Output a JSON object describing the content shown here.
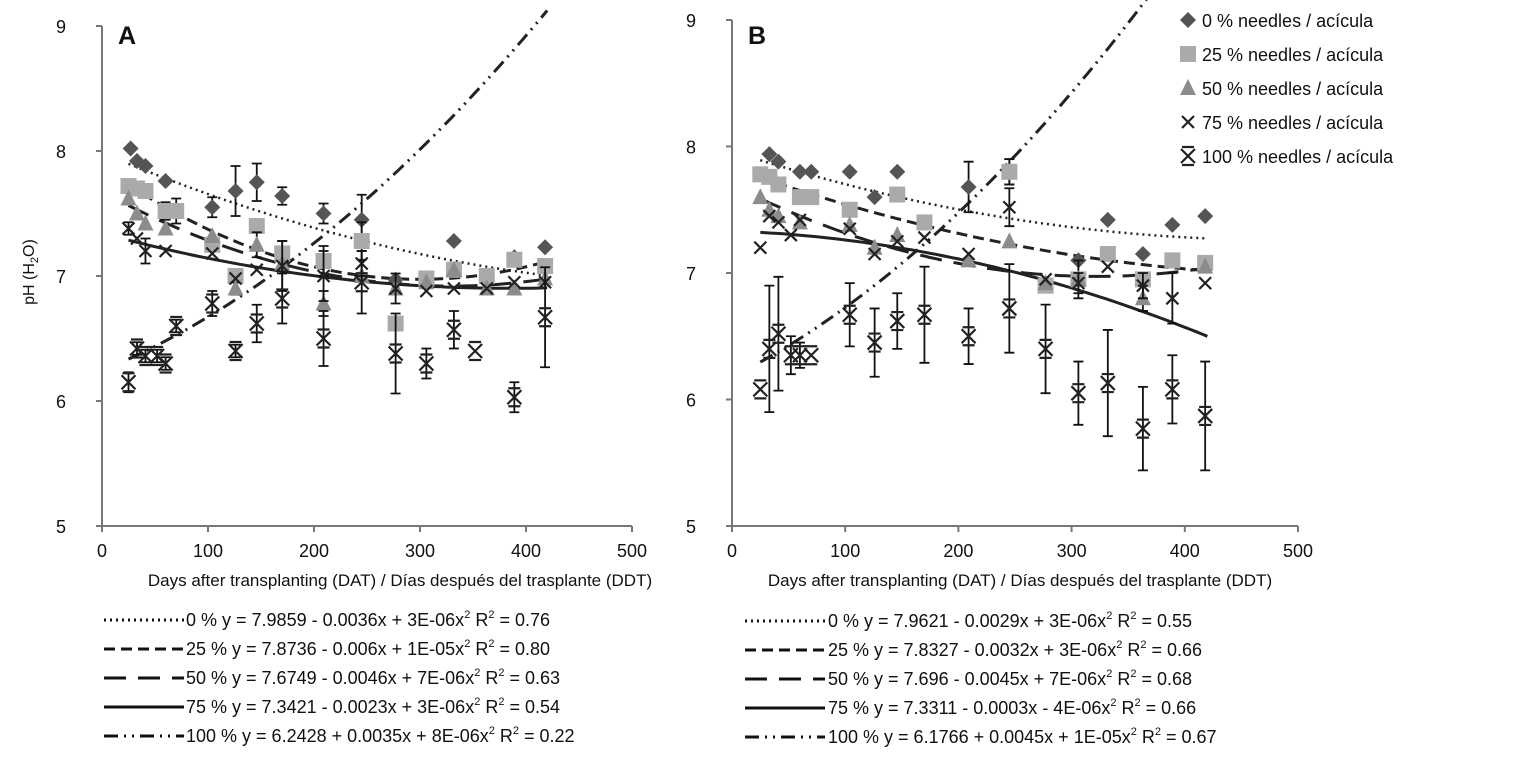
{
  "figure": {
    "ylabel_main": "pH (H",
    "ylabel_sub": "2",
    "ylabel_end": "O)"
  },
  "legend": {
    "items": [
      {
        "marker": "diamond",
        "label": "0 % needles / acícula"
      },
      {
        "marker": "square",
        "label": "25 % needles / acícula"
      },
      {
        "marker": "triangle",
        "label": "50 % needles / acícula"
      },
      {
        "marker": "x",
        "label": "75 % needles / acícula"
      },
      {
        "marker": "xbar",
        "label": "100 % needles / acícula"
      }
    ]
  },
  "colors": {
    "s0": "#555555",
    "s25": "#aaaaaa",
    "s50": "#8c8c8c",
    "s75": "#222222",
    "s100": "#222222",
    "axis": "#777777",
    "text": "#111111"
  },
  "chart_data": [
    {
      "type": "scatter",
      "panel": "A",
      "title": "",
      "xlabel": "Days after transplanting (DAT) / Días después del trasplante (DDT)",
      "ylabel": "pH (H2O)",
      "xlim": [
        0,
        500
      ],
      "ylim": [
        5,
        9
      ],
      "xticks": [
        0,
        100,
        200,
        300,
        400,
        500
      ],
      "yticks": [
        5,
        6,
        7,
        8,
        9
      ],
      "grid": false,
      "series": [
        {
          "name": "0 % needles / acícula",
          "marker": "diamond",
          "color": "#555555",
          "points": [
            [
              27,
              8.02,
              0
            ],
            [
              33,
              7.92,
              0
            ],
            [
              41,
              7.88,
              0
            ],
            [
              60,
              7.76,
              0
            ],
            [
              104,
              7.55,
              0.08
            ],
            [
              126,
              7.68,
              0.2
            ],
            [
              146,
              7.75,
              0.15
            ],
            [
              170,
              7.64,
              0.07
            ],
            [
              209,
              7.5,
              0.08
            ],
            [
              245,
              7.45,
              0.2
            ],
            [
              277,
              6.97,
              0
            ],
            [
              306,
              6.95,
              0
            ],
            [
              332,
              7.28,
              0
            ],
            [
              363,
              6.97,
              0
            ],
            [
              389,
              7.15,
              0
            ],
            [
              418,
              7.23,
              0
            ]
          ]
        },
        {
          "name": "25 % needles / acícula",
          "marker": "square",
          "color": "#aaaaaa",
          "points": [
            [
              25,
              7.72,
              0.05
            ],
            [
              33,
              7.7,
              0
            ],
            [
              41,
              7.68,
              0
            ],
            [
              60,
              7.52,
              0.07
            ],
            [
              70,
              7.52,
              0.1
            ],
            [
              104,
              7.25,
              0.05
            ],
            [
              126,
              7.0,
              0
            ],
            [
              146,
              7.4,
              0
            ],
            [
              170,
              7.18,
              0.1
            ],
            [
              209,
              7.12,
              0.12
            ],
            [
              245,
              7.28,
              0.15
            ],
            [
              277,
              6.62,
              0
            ],
            [
              306,
              6.98,
              0
            ],
            [
              332,
              7.05,
              0
            ],
            [
              363,
              7.0,
              0
            ],
            [
              389,
              7.13,
              0
            ],
            [
              418,
              7.08,
              0
            ]
          ]
        },
        {
          "name": "50 % needles / acícula",
          "marker": "triangle",
          "color": "#8c8c8c",
          "points": [
            [
              25,
              7.62,
              0
            ],
            [
              33,
              7.5,
              0
            ],
            [
              41,
              7.42,
              0
            ],
            [
              60,
              7.38,
              0
            ],
            [
              104,
              7.32,
              0
            ],
            [
              126,
              6.9,
              0.05
            ],
            [
              146,
              7.25,
              0.1
            ],
            [
              170,
              7.1,
              0
            ],
            [
              209,
              6.78,
              0.1
            ],
            [
              245,
              7.0,
              0
            ],
            [
              277,
              6.9,
              0
            ],
            [
              306,
              6.95,
              0
            ],
            [
              332,
              7.05,
              0
            ],
            [
              363,
              6.9,
              0
            ],
            [
              389,
              6.9,
              0
            ],
            [
              418,
              6.98,
              0
            ]
          ]
        },
        {
          "name": "75 % needles / acícula",
          "marker": "x",
          "color": "#222222",
          "points": [
            [
              25,
              7.38,
              0.05
            ],
            [
              33,
              7.3,
              0
            ],
            [
              41,
              7.2,
              0.1
            ],
            [
              60,
              7.2,
              0
            ],
            [
              104,
              7.18,
              0
            ],
            [
              126,
              6.98,
              0
            ],
            [
              146,
              7.05,
              0
            ],
            [
              170,
              7.08,
              0.2
            ],
            [
              209,
              7.0,
              0.2
            ],
            [
              245,
              7.1,
              0.1
            ],
            [
              277,
              6.9,
              0.12
            ],
            [
              306,
              6.88,
              0
            ],
            [
              332,
              6.9,
              0
            ],
            [
              363,
              6.9,
              0
            ],
            [
              389,
              6.95,
              0
            ],
            [
              418,
              6.95,
              0
            ]
          ]
        },
        {
          "name": "100 % needles / acícula",
          "marker": "xbar",
          "color": "#222222",
          "points": [
            [
              25,
              6.15,
              0.08
            ],
            [
              33,
              6.42,
              0.05
            ],
            [
              41,
              6.36,
              0.05
            ],
            [
              52,
              6.36,
              0.05
            ],
            [
              60,
              6.3,
              0.05
            ],
            [
              70,
              6.6,
              0.05
            ],
            [
              104,
              6.78,
              0.1
            ],
            [
              126,
              6.4,
              0.05
            ],
            [
              146,
              6.62,
              0.15
            ],
            [
              170,
              6.82,
              0.2
            ],
            [
              209,
              6.5,
              0.22
            ],
            [
              245,
              6.95,
              0.25
            ],
            [
              277,
              6.38,
              0.32
            ],
            [
              306,
              6.3,
              0.12
            ],
            [
              332,
              6.57,
              0.15
            ],
            [
              352,
              6.4,
              0
            ],
            [
              389,
              6.03,
              0.12
            ],
            [
              418,
              6.67,
              0.4
            ]
          ]
        }
      ],
      "fits": [
        {
          "name": "0 %",
          "style": "dotted",
          "equation": "0 % y = 7.9859 - 0.0036x + 3E-06x",
          "r2": "0.76",
          "a": 7.9859,
          "b": -0.0036,
          "c": 3e-06,
          "x_range": [
            25,
            420
          ]
        },
        {
          "name": "25 %",
          "style": "dash",
          "equation": "25 % y = 7.8736 - 0.006x + 1E-05x",
          "r2": "0.80",
          "a": 7.8736,
          "b": -0.006,
          "c": 1e-05,
          "x_range": [
            25,
            420
          ]
        },
        {
          "name": "50 %",
          "style": "longdash",
          "equation": "50 % y = 7.6749 - 0.0046x + 7E-06x",
          "r2": "0.63",
          "a": 7.6749,
          "b": -0.0046,
          "c": 7e-06,
          "x_range": [
            25,
            420
          ]
        },
        {
          "name": "75 %",
          "style": "solid",
          "equation": "75 % y = 7.3421 - 0.0023x + 3E-06x",
          "r2": "0.54",
          "a": 7.3421,
          "b": -0.0023,
          "c": 3e-06,
          "x_range": [
            25,
            420
          ]
        },
        {
          "name": "100 %",
          "style": "dashdot",
          "equation": "100 % y = 6.2428 + 0.0035x + 8E-06x",
          "r2": "0.22",
          "a": 6.2428,
          "b": 0.0035,
          "c": 8e-06,
          "x_range": [
            25,
            420
          ]
        }
      ]
    },
    {
      "type": "scatter",
      "panel": "B",
      "title": "",
      "xlabel": "Days after transplanting (DAT) / Días después del trasplante (DDT)",
      "ylabel": "pH (H2O)",
      "xlim": [
        0,
        500
      ],
      "ylim": [
        5,
        9
      ],
      "xticks": [
        0,
        100,
        200,
        300,
        400,
        500
      ],
      "yticks": [
        5,
        6,
        7,
        8,
        9
      ],
      "grid": false,
      "series": [
        {
          "name": "0 % needles / acícula",
          "marker": "diamond",
          "color": "#555555",
          "points": [
            [
              33,
              7.94,
              0
            ],
            [
              41,
              7.88,
              0
            ],
            [
              60,
              7.8,
              0
            ],
            [
              70,
              7.8,
              0
            ],
            [
              104,
              7.8,
              0
            ],
            [
              126,
              7.6,
              0
            ],
            [
              146,
              7.8,
              0
            ],
            [
              209,
              7.68,
              0.2
            ],
            [
              245,
              7.8,
              0.1
            ],
            [
              306,
              7.1,
              0
            ],
            [
              332,
              7.42,
              0
            ],
            [
              363,
              7.15,
              0
            ],
            [
              389,
              7.38,
              0
            ],
            [
              418,
              7.45,
              0
            ]
          ]
        },
        {
          "name": "25 % needles / acícula",
          "marker": "square",
          "color": "#aaaaaa",
          "points": [
            [
              25,
              7.78,
              0
            ],
            [
              33,
              7.76,
              0
            ],
            [
              41,
              7.7,
              0
            ],
            [
              60,
              7.6,
              0
            ],
            [
              70,
              7.6,
              0
            ],
            [
              104,
              7.5,
              0
            ],
            [
              146,
              7.62,
              0
            ],
            [
              170,
              7.4,
              0
            ],
            [
              245,
              7.8,
              0.1
            ],
            [
              277,
              6.9,
              0
            ],
            [
              306,
              6.95,
              0.15
            ],
            [
              332,
              7.15,
              0
            ],
            [
              363,
              6.95,
              0
            ],
            [
              389,
              7.1,
              0
            ],
            [
              418,
              7.08,
              0
            ]
          ]
        },
        {
          "name": "50 % needles / acícula",
          "marker": "triangle",
          "color": "#8c8c8c",
          "points": [
            [
              25,
              7.6,
              0
            ],
            [
              33,
              7.5,
              0
            ],
            [
              41,
              7.45,
              0
            ],
            [
              60,
              7.4,
              0
            ],
            [
              104,
              7.38,
              0
            ],
            [
              126,
              7.2,
              0
            ],
            [
              146,
              7.3,
              0
            ],
            [
              209,
              7.1,
              0
            ],
            [
              245,
              7.25,
              0
            ],
            [
              277,
              6.92,
              0
            ],
            [
              306,
              6.95,
              0
            ],
            [
              363,
              6.8,
              0.1
            ],
            [
              418,
              7.05,
              0
            ]
          ]
        },
        {
          "name": "75 % needles / acícula",
          "marker": "x",
          "color": "#222222",
          "points": [
            [
              25,
              7.2,
              0
            ],
            [
              33,
              7.45,
              0
            ],
            [
              41,
              7.4,
              0
            ],
            [
              52,
              7.3,
              0
            ],
            [
              60,
              7.42,
              0
            ],
            [
              104,
              7.35,
              0
            ],
            [
              126,
              7.15,
              0
            ],
            [
              146,
              7.25,
              0
            ],
            [
              170,
              7.28,
              0
            ],
            [
              209,
              7.15,
              0
            ],
            [
              245,
              7.52,
              0.15
            ],
            [
              277,
              6.95,
              0
            ],
            [
              306,
              6.92,
              0.08
            ],
            [
              332,
              7.05,
              0
            ],
            [
              363,
              6.9,
              0.1
            ],
            [
              389,
              6.8,
              0.2
            ],
            [
              418,
              6.92,
              0
            ]
          ]
        },
        {
          "name": "100 % needles / acícula",
          "marker": "xbar",
          "color": "#222222",
          "points": [
            [
              25,
              6.08,
              0
            ],
            [
              33,
              6.4,
              0.5
            ],
            [
              41,
              6.52,
              0.45
            ],
            [
              52,
              6.35,
              0.15
            ],
            [
              60,
              6.35,
              0.1
            ],
            [
              70,
              6.35,
              0
            ],
            [
              104,
              6.67,
              0.25
            ],
            [
              126,
              6.45,
              0.27
            ],
            [
              146,
              6.62,
              0.22
            ],
            [
              170,
              6.67,
              0.38
            ],
            [
              209,
              6.5,
              0.22
            ],
            [
              245,
              6.72,
              0.35
            ],
            [
              277,
              6.4,
              0.35
            ],
            [
              306,
              6.05,
              0.25
            ],
            [
              332,
              6.13,
              0.42
            ],
            [
              363,
              5.77,
              0.33
            ],
            [
              389,
              6.08,
              0.27
            ],
            [
              418,
              5.87,
              0.43
            ]
          ]
        }
      ],
      "fits": [
        {
          "name": "0 %",
          "style": "dotted",
          "equation": "0 % y = 7.9621 - 0.0029x + 3E-06x",
          "r2": "0.55",
          "a": 7.9621,
          "b": -0.0029,
          "c": 3e-06,
          "x_range": [
            25,
            420
          ]
        },
        {
          "name": "25 %",
          "style": "dash",
          "equation": "25 % y = 7.8327 - 0.0032x + 3E-06x",
          "r2": "0.66",
          "a": 7.8327,
          "b": -0.0032,
          "c": 3e-06,
          "x_range": [
            25,
            420
          ]
        },
        {
          "name": "50 %",
          "style": "longdash",
          "equation": "50 % y = 7.696 - 0.0045x + 7E-06x",
          "r2": "0.68",
          "a": 7.696,
          "b": -0.0045,
          "c": 7e-06,
          "x_range": [
            25,
            420
          ]
        },
        {
          "name": "75 %",
          "style": "solid",
          "equation": "75 % y = 7.3311 - 0.0003x - 4E-06x",
          "r2": "0.66",
          "a": 7.3311,
          "b": -0.0003,
          "c": -4e-06,
          "x_range": [
            25,
            420
          ]
        },
        {
          "name": "100 %",
          "style": "dashdot",
          "equation": "100 % y = 6.1766 + 0.0045x + 1E-05x",
          "r2": "0.67",
          "a": 6.1766,
          "b": 0.0045,
          "c": 1e-05,
          "x_range": [
            25,
            420
          ]
        }
      ]
    }
  ]
}
